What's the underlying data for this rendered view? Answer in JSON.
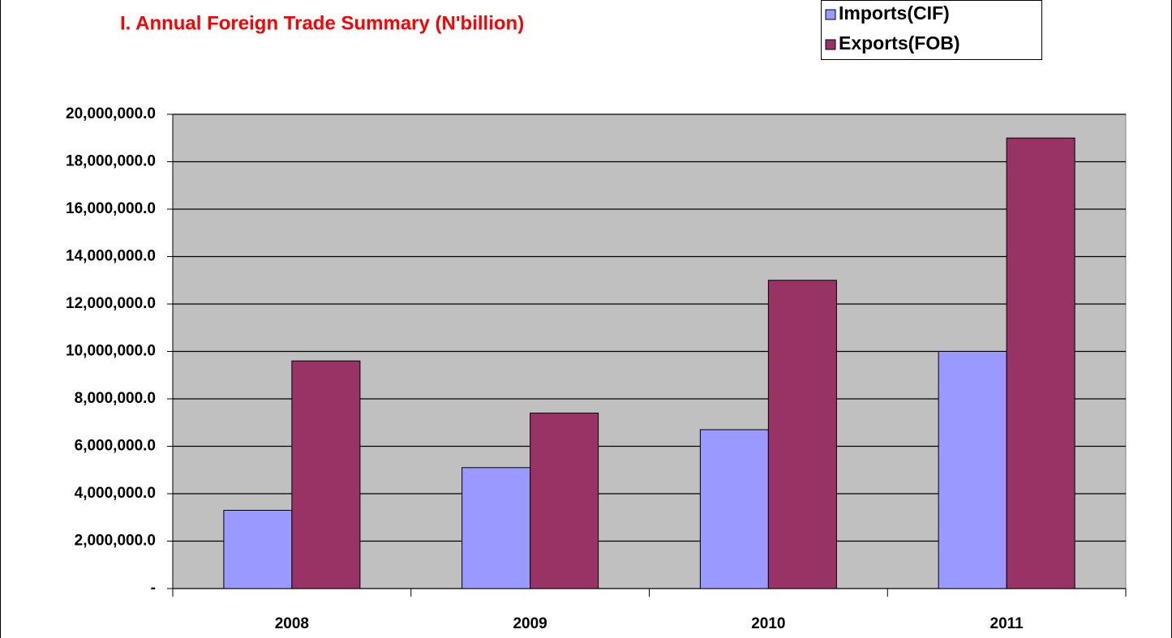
{
  "chart_data": {
    "type": "bar",
    "title": "I. Annual Foreign Trade Summary (N'billion)",
    "categories": [
      "2008",
      "2009",
      "2010",
      "2011"
    ],
    "series": [
      {
        "name": "Imports(CIF)",
        "color": "#9999ff",
        "values": [
          3300000,
          5100000,
          6700000,
          10000000
        ]
      },
      {
        "name": "Exports(FOB)",
        "color": "#993366",
        "values": [
          9600000,
          7400000,
          13000000,
          19000000
        ]
      }
    ],
    "ylim": [
      0,
      20000000
    ],
    "yticks": [
      {
        "value": 0,
        "label": "-"
      },
      {
        "value": 2000000,
        "label": "2,000,000.0"
      },
      {
        "value": 4000000,
        "label": "4,000,000.0"
      },
      {
        "value": 6000000,
        "label": "6,000,000.0"
      },
      {
        "value": 8000000,
        "label": "8,000,000.0"
      },
      {
        "value": 10000000,
        "label": "10,000,000.0"
      },
      {
        "value": 12000000,
        "label": "12,000,000.0"
      },
      {
        "value": 14000000,
        "label": "14,000,000.0"
      },
      {
        "value": 16000000,
        "label": "16,000,000.0"
      },
      {
        "value": 18000000,
        "label": "18,000,000.0"
      },
      {
        "value": 20000000,
        "label": "20,000,000.0"
      }
    ],
    "grid": true,
    "legend": "top-right"
  }
}
